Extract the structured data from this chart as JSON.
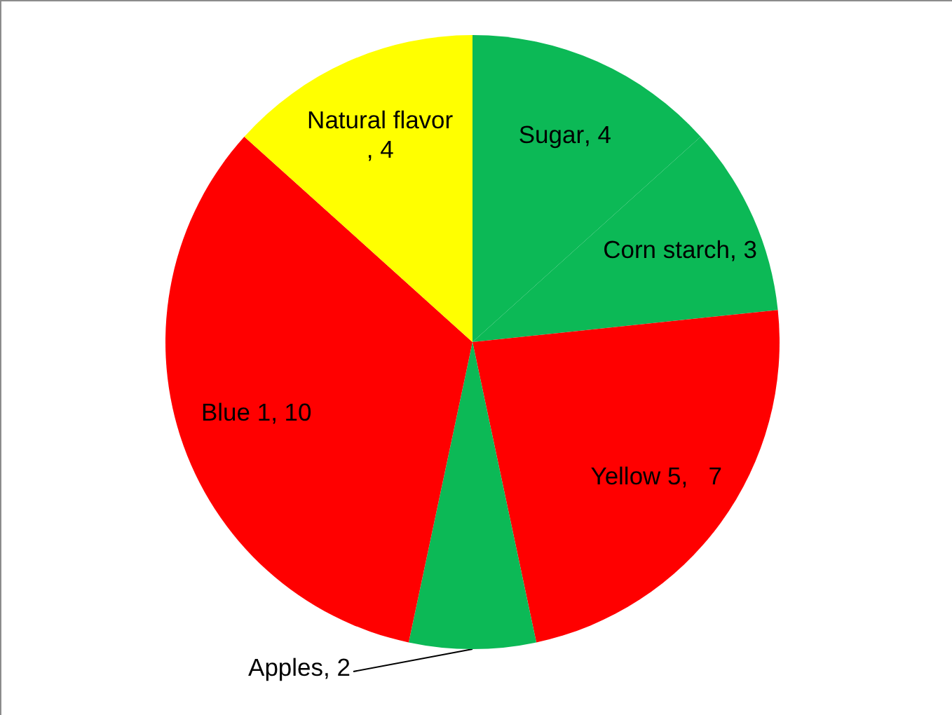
{
  "chart_data": {
    "type": "pie",
    "categories": [
      "Sugar",
      "Corn starch",
      "Yellow 5",
      "Apples",
      "Blue 1",
      "Natural flavor"
    ],
    "values": [
      4,
      3,
      7,
      2,
      10,
      4
    ],
    "value_labels": [
      ", 4",
      ", 3",
      ",   7",
      ", 2",
      ", 10",
      ", 4"
    ],
    "colors": [
      "#0cb956",
      "#0cb956",
      "#ff0000",
      "#0cb956",
      "#ff0000",
      "#ffff00"
    ],
    "legend": false
  }
}
